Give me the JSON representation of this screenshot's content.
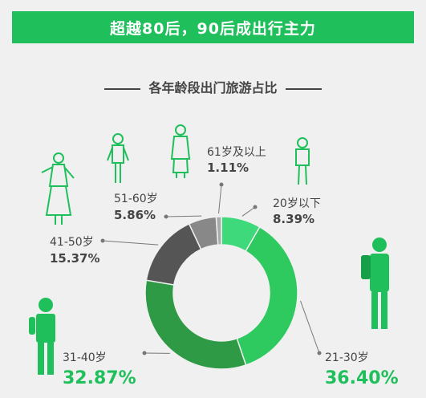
{
  "banner": {
    "title": "超越80后，90后成出行主力"
  },
  "subtitle": "各年龄段出门旅游占比",
  "colors": {
    "accent": "#1fbf5b",
    "slices": [
      "#3dd97a",
      "#2ec95f",
      "#2e9a45",
      "#555555",
      "#888888",
      "#aaaaaa"
    ]
  },
  "chart_data": {
    "type": "pie",
    "title": "各年龄段出门旅游占比",
    "categories": [
      "20岁以下",
      "21-30岁",
      "31-40岁",
      "41-50岁",
      "51-60岁",
      "61岁及以上"
    ],
    "values": [
      8.39,
      36.4,
      32.87,
      15.37,
      5.86,
      1.11
    ],
    "value_labels": [
      "8.39%",
      "36.40%",
      "32.87%",
      "15.37%",
      "5.86%",
      "1.11%"
    ],
    "style": "donut"
  }
}
